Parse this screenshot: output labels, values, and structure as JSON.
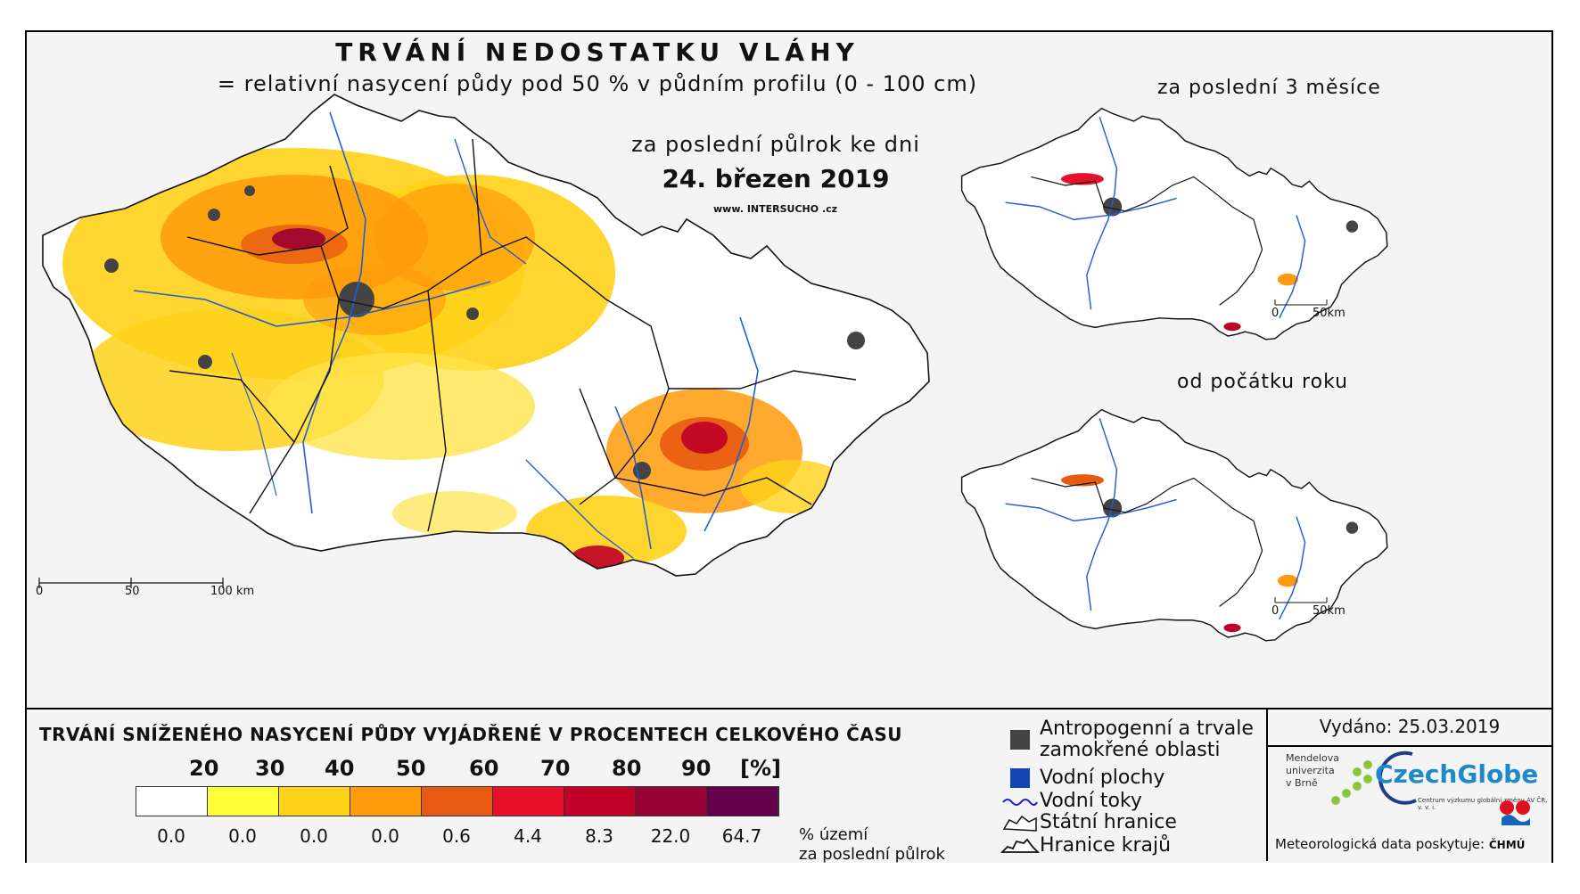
{
  "map": {
    "title": "TRVÁNÍ NEDOSTATKU VLÁHY",
    "subtitle": "= relativní nasycení půdy pod 50 % v půdním profilu (0 - 100 cm)",
    "period": "za poslední půlrok ke dni",
    "date": "24. březen 2019",
    "website_prefix": "www.",
    "website_brand": "INTERSUCHO",
    "website_suffix": ".cz",
    "main_scale": [
      "0",
      "50",
      "100 km"
    ],
    "inset_top_title": "za poslední 3 měsíce",
    "inset_bottom_title": "od počátku roku",
    "inset_scale": [
      "0",
      "50km"
    ]
  },
  "legend": {
    "title": "TRVÁNÍ SNÍŽENÉHO NASYCENÍ PŮDY VYJÁDŘENÉ V PROCENTECH CELKOVÉHO ČASU",
    "class_breaks": [
      "20",
      "30",
      "40",
      "50",
      "60",
      "70",
      "80",
      "90",
      "[%]"
    ],
    "colors": [
      "#ffffff",
      "#ffff3a",
      "#ffd21a",
      "#ff9a0a",
      "#e85a12",
      "#e8102a",
      "#c00026",
      "#990033",
      "#66004c"
    ],
    "area_percentages": [
      "0.0",
      "0.0",
      "0.0",
      "0.0",
      "0.6",
      "4.4",
      "8.3",
      "22.0",
      "64.7"
    ],
    "area_unit_line1": "% území",
    "area_unit_line2": "za poslední půlrok"
  },
  "symbols": {
    "anthropogenic_line1": "Antropogenní a trvale",
    "anthropogenic_line2": "zamokřené oblasti",
    "water_bodies": "Vodní plochy",
    "water_streams": "Vodní toky",
    "state_border": "Státní hranice",
    "region_border": "Hranice krajů"
  },
  "issued": {
    "label": "Vydáno: 25.03.2019",
    "mendel_line1": "Mendelova",
    "mendel_line2": "univerzita",
    "mendel_line3": "v Brně",
    "czechglobe": "CzechGlobe",
    "czechglobe_sub": "Centrum výzkumu globální změny AV ČR, v. v. i.",
    "meteo": "Meteorologická data poskytuje:",
    "chmu": "ČHMÚ"
  }
}
